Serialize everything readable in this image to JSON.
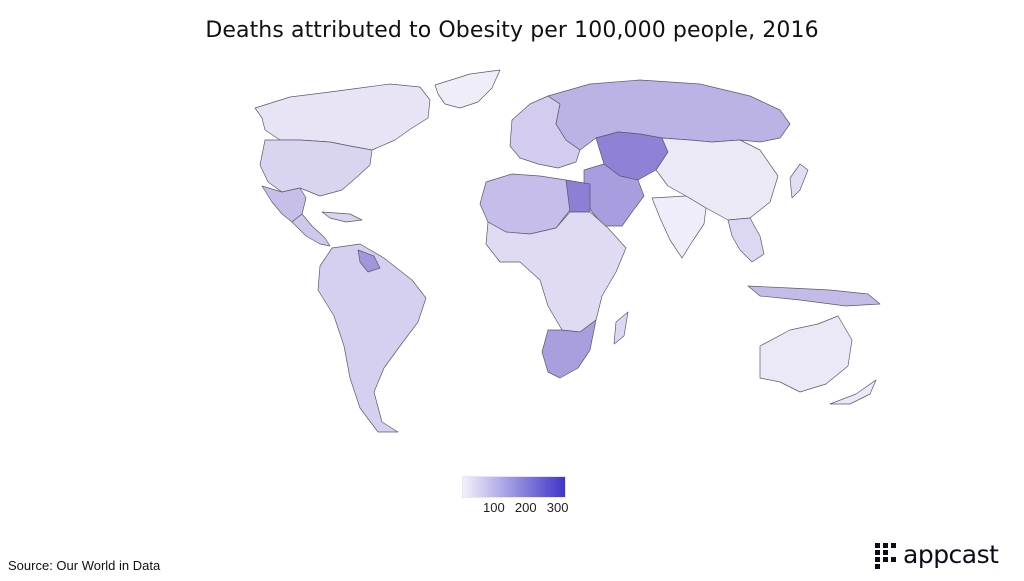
{
  "title": "Deaths attributed to Obesity per 100,000 people, 2016",
  "legend": {
    "ticks": [
      "100",
      "200",
      "300"
    ],
    "tick_values": [
      100,
      200,
      300
    ],
    "min": 0,
    "max": 320,
    "low_color": "#f3f1fb",
    "high_color": "#3f35c7"
  },
  "source": "Source: Our World in Data",
  "brand": {
    "name": "appcast",
    "color": "#0d0d1a"
  },
  "map_regions": [
    {
      "name": "Canada",
      "level": "low"
    },
    {
      "name": "USA",
      "level": "mid-low"
    },
    {
      "name": "Mexico",
      "level": "mid"
    },
    {
      "name": "South America",
      "level": "mid-low"
    },
    {
      "name": "Greenland",
      "level": "very-low"
    },
    {
      "name": "Russia",
      "level": "mid"
    },
    {
      "name": "Europe",
      "level": "mid-low"
    },
    {
      "name": "North Africa",
      "level": "mid"
    },
    {
      "name": "Egypt",
      "level": "high"
    },
    {
      "name": "Middle East",
      "level": "mid-high"
    },
    {
      "name": "Central Asia",
      "level": "high"
    },
    {
      "name": "China",
      "level": "very-low"
    },
    {
      "name": "India",
      "level": "very-low"
    },
    {
      "name": "Southern Africa",
      "level": "mid-high"
    },
    {
      "name": "Australia",
      "level": "very-low"
    },
    {
      "name": "Indonesia",
      "level": "mid"
    }
  ]
}
